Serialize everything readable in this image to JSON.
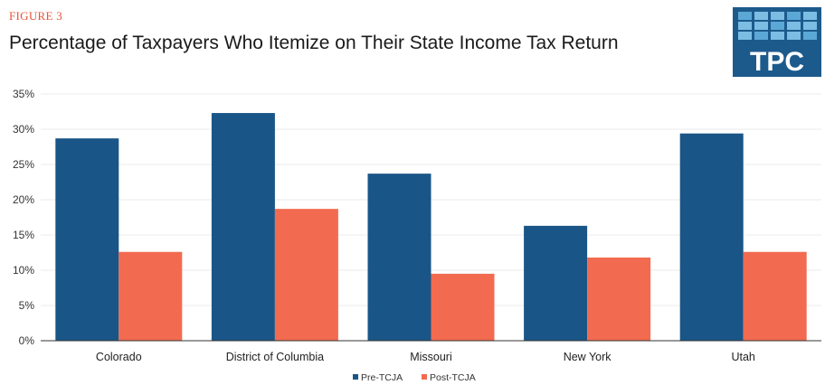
{
  "figure_label": "FIGURE 3",
  "title": "Percentage of Taxpayers Who Itemize on Their State Income Tax Return",
  "logo_text": "TPC",
  "colors": {
    "pre": "#1a5587",
    "post": "#f26b50",
    "accent": "#e8543a"
  },
  "chart_data": {
    "type": "bar",
    "categories": [
      "Colorado",
      "District of Columbia",
      "Missouri",
      "New York",
      "Utah"
    ],
    "series": [
      {
        "name": "Pre-TCJA",
        "values": [
          28.7,
          32.3,
          23.7,
          16.3,
          29.4
        ]
      },
      {
        "name": "Post-TCJA",
        "values": [
          12.6,
          18.7,
          9.5,
          11.8,
          12.6
        ]
      }
    ],
    "yticks": [
      "0%",
      "5%",
      "10%",
      "15%",
      "20%",
      "25%",
      "30%",
      "35%"
    ],
    "ylim": [
      0,
      35
    ],
    "grid": true,
    "legend": "bottom-center"
  }
}
